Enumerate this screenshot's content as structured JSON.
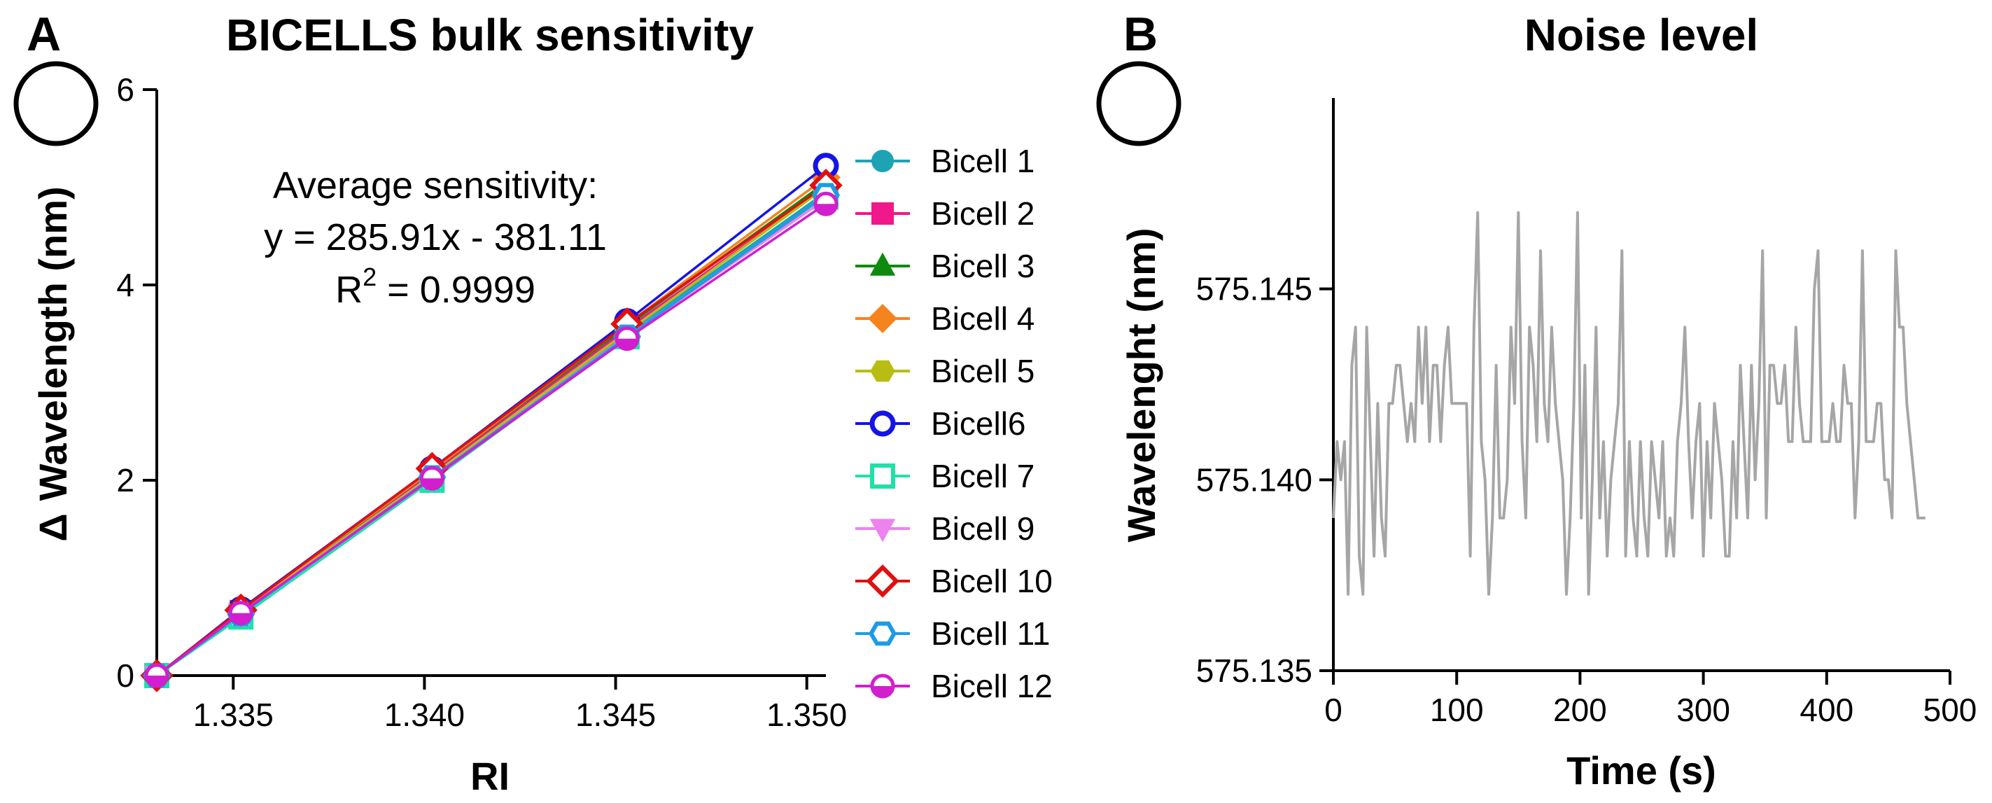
{
  "colors": {
    "bicell1": "#1ea3b5",
    "bicell2": "#f0188a",
    "bicell3": "#0f8a0f",
    "bicell4": "#f5841f",
    "bicell5": "#b9bd12",
    "bicell6": "#1414e6",
    "bicell7": "#1fe0a8",
    "bicell9": "#ee82ee",
    "bicell10": "#e01010",
    "bicell11": "#1e9be6",
    "bicell12": "#d21ecf",
    "noise": "#a6a6a6",
    "axis": "#000000"
  },
  "chart_data": [
    {
      "panel": "A",
      "type": "line",
      "title": "BICELLS bulk sensitivity",
      "xlabel": "RI",
      "ylabel_symbol": "Δ",
      "ylabel_text": "Wavelength (nm)",
      "xlim": [
        1.333,
        1.3505
      ],
      "ylim": [
        0,
        6
      ],
      "xticks": [
        "1.335",
        "1.340",
        "1.345",
        "1.350"
      ],
      "xtick_values": [
        1.335,
        1.34,
        1.345,
        1.35
      ],
      "yticks": [
        "0",
        "2",
        "4",
        "6"
      ],
      "ytick_values": [
        0,
        2,
        4,
        6
      ],
      "x": [
        1.333,
        1.3352,
        1.3402,
        1.3453,
        1.3505
      ],
      "series": [
        {
          "name": "Bicell 1",
          "marker": "circle",
          "color_key": "bicell1",
          "values": [
            0,
            0.65,
            2.05,
            3.5,
            4.95
          ]
        },
        {
          "name": "Bicell 2",
          "marker": "square",
          "color_key": "bicell2",
          "values": [
            0,
            0.66,
            2.08,
            3.55,
            5.0
          ]
        },
        {
          "name": "Bicell 3",
          "marker": "triangle-up",
          "color_key": "bicell3",
          "values": [
            0,
            0.66,
            2.1,
            3.58,
            5.05
          ]
        },
        {
          "name": "Bicell 4",
          "marker": "diamond",
          "color_key": "bicell4",
          "values": [
            0,
            0.67,
            2.1,
            3.6,
            5.1
          ]
        },
        {
          "name": "Bicell 5",
          "marker": "hexagon",
          "color_key": "bicell5",
          "values": [
            0,
            0.65,
            2.05,
            3.52,
            5.0
          ]
        },
        {
          "name": "Bicell6",
          "marker": "circle-open",
          "color_key": "bicell6",
          "values": [
            0,
            0.68,
            2.12,
            3.63,
            5.22
          ]
        },
        {
          "name": "Bicell 7",
          "marker": "square-open",
          "color_key": "bicell7",
          "values": [
            0,
            0.6,
            2.0,
            3.47,
            4.9
          ]
        },
        {
          "name": "Bicell 9",
          "marker": "triangle-down",
          "color_key": "bicell9",
          "values": [
            0,
            0.64,
            2.03,
            3.48,
            4.88
          ]
        },
        {
          "name": "Bicell 10",
          "marker": "diamond-open",
          "color_key": "bicell10",
          "values": [
            0,
            0.67,
            2.12,
            3.6,
            5.02
          ]
        },
        {
          "name": "Bicell 11",
          "marker": "hexagon-open",
          "color_key": "bicell11",
          "values": [
            0,
            0.63,
            2.03,
            3.47,
            4.92
          ]
        },
        {
          "name": "Bicell 12",
          "marker": "circle-half",
          "color_key": "bicell12",
          "values": [
            0,
            0.64,
            2.02,
            3.45,
            4.83
          ]
        }
      ],
      "annotation": {
        "line1": "Average sensitivity:",
        "line2": "y = 285.91x - 381.11",
        "r_label": "R",
        "r_sup": "2",
        "r_value": " = 0.9999"
      }
    },
    {
      "panel": "B",
      "type": "line",
      "title": "Noise level",
      "xlabel": "Time (s)",
      "ylabel": "Wavelenght (nm)",
      "xlim": [
        0,
        500
      ],
      "ylim": [
        575.135,
        575.15
      ],
      "xticks": [
        "0",
        "100",
        "200",
        "300",
        "400",
        "500"
      ],
      "xtick_values": [
        0,
        100,
        200,
        300,
        400,
        500
      ],
      "yticks": [
        "575.135",
        "575.140",
        "575.145"
      ],
      "ytick_values": [
        575.135,
        575.14,
        575.145
      ],
      "series": [
        {
          "name": "noise",
          "color_key": "noise",
          "x": [
            0,
            3,
            6,
            9,
            12,
            15,
            18,
            21,
            24,
            27,
            30,
            33,
            36,
            39,
            42,
            45,
            48,
            51,
            54,
            57,
            60,
            63,
            66,
            69,
            72,
            75,
            78,
            81,
            84,
            87,
            90,
            93,
            96,
            99,
            102,
            105,
            108,
            111,
            114,
            117,
            120,
            123,
            126,
            129,
            132,
            135,
            138,
            141,
            144,
            147,
            150,
            153,
            156,
            159,
            162,
            165,
            168,
            171,
            174,
            177,
            180,
            183,
            186,
            189,
            192,
            195,
            198,
            201,
            204,
            207,
            210,
            213,
            216,
            219,
            222,
            225,
            228,
            231,
            234,
            237,
            240,
            243,
            246,
            249,
            252,
            255,
            258,
            261,
            264,
            267,
            270,
            273,
            276,
            279,
            282,
            285,
            288,
            291,
            294,
            297,
            300,
            303,
            306,
            309,
            312,
            315,
            318,
            321,
            324,
            327,
            330,
            333,
            336,
            339,
            342,
            345,
            348,
            351,
            354,
            357,
            360,
            363,
            366,
            369,
            372,
            375,
            378,
            381,
            384,
            387,
            390,
            393,
            396,
            399,
            402,
            405,
            408,
            411,
            414,
            417,
            420,
            423,
            426,
            429,
            432,
            435,
            438,
            441,
            444,
            447,
            450,
            453,
            456,
            459,
            462,
            465,
            468,
            471,
            474,
            477,
            480
          ],
          "values": [
            575.139,
            575.141,
            575.14,
            575.141,
            575.137,
            575.143,
            575.144,
            575.138,
            575.137,
            575.144,
            575.141,
            575.138,
            575.142,
            575.139,
            575.138,
            575.142,
            575.142,
            575.143,
            575.143,
            575.142,
            575.141,
            575.142,
            575.141,
            575.144,
            575.142,
            575.144,
            575.141,
            575.143,
            575.143,
            575.141,
            575.143,
            575.144,
            575.142,
            575.142,
            575.142,
            575.142,
            575.142,
            575.138,
            575.144,
            575.147,
            575.141,
            575.14,
            575.137,
            575.139,
            575.143,
            575.139,
            575.139,
            575.14,
            575.144,
            575.142,
            575.147,
            575.141,
            575.139,
            575.144,
            575.143,
            575.141,
            575.146,
            575.142,
            575.141,
            575.144,
            575.142,
            575.141,
            575.14,
            575.137,
            575.139,
            575.142,
            575.147,
            575.139,
            575.143,
            575.137,
            575.14,
            575.144,
            575.139,
            575.141,
            575.138,
            575.14,
            575.141,
            575.142,
            575.146,
            575.138,
            575.141,
            575.139,
            575.138,
            575.141,
            575.139,
            575.138,
            575.141,
            575.14,
            575.139,
            575.141,
            575.138,
            575.139,
            575.138,
            575.141,
            575.142,
            575.144,
            575.141,
            575.139,
            575.141,
            575.142,
            575.138,
            575.141,
            575.139,
            575.142,
            575.141,
            575.14,
            575.138,
            575.138,
            575.141,
            575.139,
            575.143,
            575.141,
            575.139,
            575.143,
            575.14,
            575.142,
            575.146,
            575.139,
            575.143,
            575.143,
            575.142,
            575.142,
            575.143,
            575.141,
            575.141,
            575.144,
            575.142,
            575.141,
            575.141,
            575.141,
            575.145,
            575.146,
            575.141,
            575.141,
            575.141,
            575.142,
            575.141,
            575.141,
            575.143,
            575.142,
            575.142,
            575.139,
            575.141,
            575.146,
            575.141,
            575.141,
            575.141,
            575.142,
            575.142,
            575.14,
            575.14,
            575.139,
            575.146,
            575.144,
            575.144,
            575.142,
            575.141,
            575.14,
            575.139,
            575.139,
            575.139
          ]
        }
      ]
    }
  ]
}
